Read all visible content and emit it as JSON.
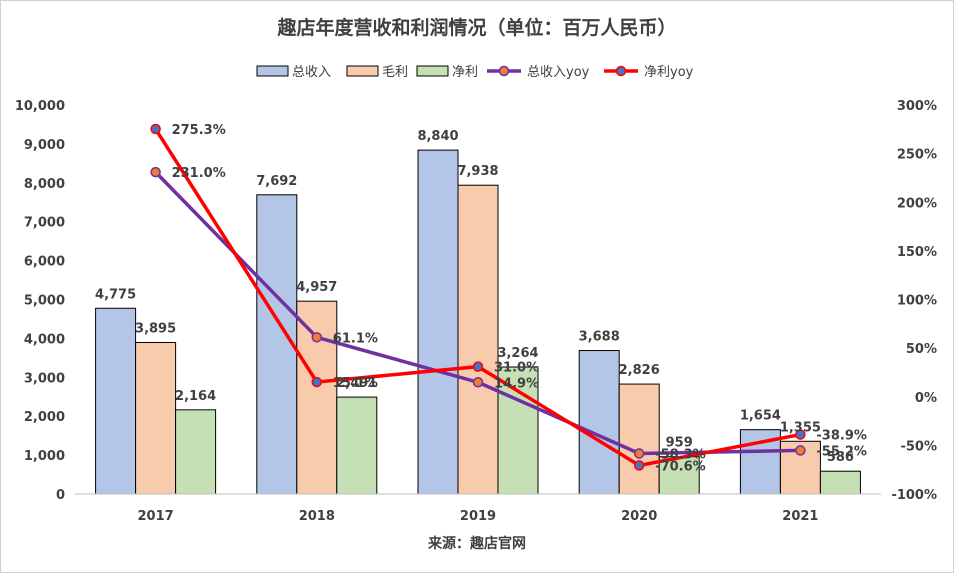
{
  "chart_data": {
    "type": "bar",
    "title": "趣店年度营收和利润情况（单位：百万人民币）",
    "source": "来源：趣店官网",
    "categories": [
      "2017",
      "2018",
      "2019",
      "2020",
      "2021"
    ],
    "series": [
      {
        "name": "总收入",
        "kind": "bar",
        "axis": "left",
        "color": "#b4c6e7",
        "values": [
          4775,
          7692,
          8840,
          3688,
          1654
        ],
        "labels": [
          "4,775",
          "7,692",
          "8,840",
          "3,688",
          "1,654"
        ]
      },
      {
        "name": "毛利",
        "kind": "bar",
        "axis": "left",
        "color": "#f8cbad",
        "values": [
          3895,
          4957,
          7938,
          2826,
          1355
        ],
        "labels": [
          "3,895",
          "4,957",
          "7,938",
          "2,826",
          "1,355"
        ]
      },
      {
        "name": "净利",
        "kind": "bar",
        "axis": "left",
        "color": "#c5e0b4",
        "values": [
          2164,
          2491,
          3264,
          959,
          586
        ],
        "labels": [
          "2,164",
          "2,491",
          "3,264",
          "959",
          "586"
        ]
      },
      {
        "name": "总收入yoy",
        "kind": "line",
        "axis": "right",
        "color": "#7030a0",
        "marker_fill": "#ed7d31",
        "values": [
          231.0,
          61.1,
          14.9,
          -58.3,
          -55.2
        ],
        "labels": [
          "231.0%",
          "61.1%",
          "14.9%",
          "-58.3%",
          "-55.2%"
        ]
      },
      {
        "name": "净利yoy",
        "kind": "line",
        "axis": "right",
        "color": "#ff0000",
        "marker_fill": "#4472c4",
        "values": [
          275.3,
          15.1,
          31.0,
          -70.6,
          -38.9
        ],
        "labels": [
          "275.3%",
          "15.1%",
          "31.0%",
          "-70.6%",
          "-38.9%"
        ]
      }
    ],
    "y_left": {
      "min": 0,
      "max": 10000,
      "ticks": [
        "0",
        "1,000",
        "2,000",
        "3,000",
        "4,000",
        "5,000",
        "6,000",
        "7,000",
        "8,000",
        "9,000",
        "10,000"
      ]
    },
    "y_right": {
      "min": -100,
      "max": 300,
      "ticks": [
        "-100%",
        "-50%",
        "0%",
        "50%",
        "100%",
        "150%",
        "200%",
        "250%",
        "300%"
      ]
    },
    "grid": false,
    "legend_position": "top"
  }
}
